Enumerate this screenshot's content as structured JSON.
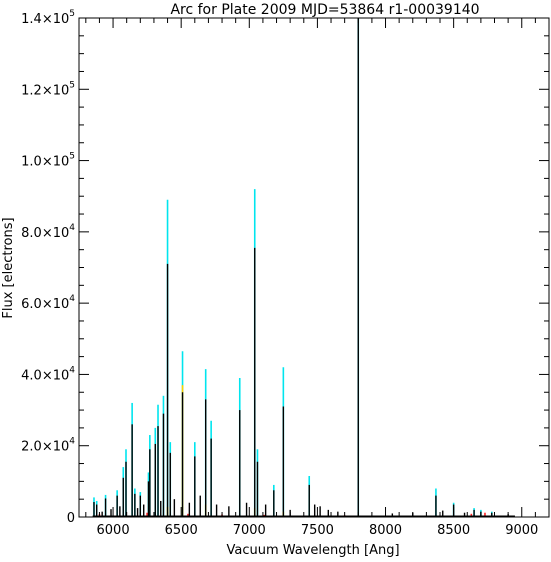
{
  "chart_data": {
    "type": "line",
    "title": "Arc for Plate 2009   MJD=53864   r1-00039140",
    "xlabel": "Vacuum Wavelength [Ang]",
    "ylabel": "Flux [electrons]",
    "xlim": [
      5750,
      9200
    ],
    "ylim": [
      0,
      140000
    ],
    "x_ticks": [
      6000,
      6500,
      7000,
      7500,
      8000,
      8500,
      9000
    ],
    "x_tick_labels": [
      "6000",
      "6500",
      "7000",
      "7500",
      "8000",
      "8500",
      "9000"
    ],
    "y_ticks": [
      0,
      20000,
      40000,
      60000,
      80000,
      100000,
      120000,
      140000
    ],
    "y_tick_labels": [
      {
        "mantissa": "0",
        "exponent": ""
      },
      {
        "mantissa": "2.0×10",
        "exponent": "4"
      },
      {
        "mantissa": "4.0×10",
        "exponent": "4"
      },
      {
        "mantissa": "6.0×10",
        "exponent": "4"
      },
      {
        "mantissa": "8.0×10",
        "exponent": "4"
      },
      {
        "mantissa": "1.0×10",
        "exponent": "5"
      },
      {
        "mantissa": "1.2×10",
        "exponent": "5"
      },
      {
        "mantissa": "1.4×10",
        "exponent": "5"
      }
    ],
    "grid": false,
    "colors": {
      "fiber_a": "#00e5ee",
      "fiber_b": "#ffd000",
      "fiber_c": "#ff2020",
      "main": "#000000"
    },
    "series": [
      {
        "color": "#00e5ee",
        "lines": [
          [
            5860,
            5500
          ],
          [
            5880,
            4500
          ],
          [
            5945,
            6200
          ],
          [
            6030,
            7500
          ],
          [
            6075,
            14000
          ],
          [
            6095,
            19000
          ],
          [
            6140,
            32000
          ],
          [
            6160,
            8000
          ],
          [
            6200,
            7000
          ],
          [
            6260,
            12500
          ],
          [
            6270,
            23000
          ],
          [
            6310,
            25000
          ],
          [
            6330,
            31500
          ],
          [
            6370,
            34000
          ],
          [
            6400,
            89000
          ],
          [
            6420,
            21000
          ],
          [
            6510,
            46500
          ],
          [
            6600,
            21000
          ],
          [
            6680,
            41500
          ],
          [
            6720,
            27000
          ],
          [
            6930,
            39000
          ],
          [
            7040,
            92000
          ],
          [
            7060,
            19000
          ],
          [
            7180,
            9000
          ],
          [
            7250,
            42000
          ],
          [
            7440,
            11500
          ],
          [
            7800,
            140000
          ],
          [
            8370,
            8000
          ],
          [
            8500,
            4000
          ],
          [
            8650,
            2500
          ],
          [
            8700,
            2000
          ],
          [
            8780,
            1500
          ]
        ]
      },
      {
        "color": "#ffd000",
        "lines": [
          [
            6510,
            37000
          ],
          [
            6680,
            3500
          ],
          [
            6400,
            2800
          ],
          [
            7040,
            2500
          ],
          [
            7250,
            1500
          ]
        ]
      },
      {
        "color": "#ff2020",
        "lines": [
          [
            5900,
            800
          ],
          [
            6250,
            1200
          ],
          [
            6550,
            900
          ],
          [
            6800,
            700
          ],
          [
            7110,
            600
          ],
          [
            7700,
            500
          ],
          [
            8150,
            400
          ],
          [
            8630,
            900
          ],
          [
            8730,
            1200
          ]
        ]
      },
      {
        "color": "#000000",
        "lines": [
          [
            5860,
            4200
          ],
          [
            5880,
            3500
          ],
          [
            5945,
            5200
          ],
          [
            6030,
            6000
          ],
          [
            6075,
            11000
          ],
          [
            6095,
            15500
          ],
          [
            6140,
            26000
          ],
          [
            6160,
            6500
          ],
          [
            6200,
            6000
          ],
          [
            6260,
            10000
          ],
          [
            6270,
            19000
          ],
          [
            6310,
            20500
          ],
          [
            6330,
            25500
          ],
          [
            6370,
            29000
          ],
          [
            6400,
            71000
          ],
          [
            6420,
            18000
          ],
          [
            6510,
            35000
          ],
          [
            6600,
            17000
          ],
          [
            6680,
            33000
          ],
          [
            6720,
            22000
          ],
          [
            6930,
            30000
          ],
          [
            7040,
            75500
          ],
          [
            7060,
            15500
          ],
          [
            7180,
            7500
          ],
          [
            7250,
            31000
          ],
          [
            7440,
            9000
          ],
          [
            7800,
            140000
          ],
          [
            8370,
            6000
          ],
          [
            8500,
            3500
          ],
          [
            8650,
            2000
          ],
          [
            8700,
            1500
          ],
          [
            8780,
            1200
          ],
          [
            5920,
            1500
          ],
          [
            5985,
            2200
          ],
          [
            6050,
            3000
          ],
          [
            6180,
            2500
          ],
          [
            6225,
            3500
          ],
          [
            6350,
            4500
          ],
          [
            6450,
            5000
          ],
          [
            6560,
            4000
          ],
          [
            6640,
            6000
          ],
          [
            6760,
            3500
          ],
          [
            6850,
            3000
          ],
          [
            6980,
            4000
          ],
          [
            7120,
            3500
          ],
          [
            7300,
            2000
          ],
          [
            7480,
            3500
          ],
          [
            7520,
            3000
          ],
          [
            7580,
            2000
          ],
          [
            7650,
            1500
          ],
          [
            8050,
            1000
          ],
          [
            8200,
            1200
          ],
          [
            8420,
            1800
          ],
          [
            8580,
            1200
          ],
          [
            8900,
            800
          ]
        ]
      }
    ]
  }
}
